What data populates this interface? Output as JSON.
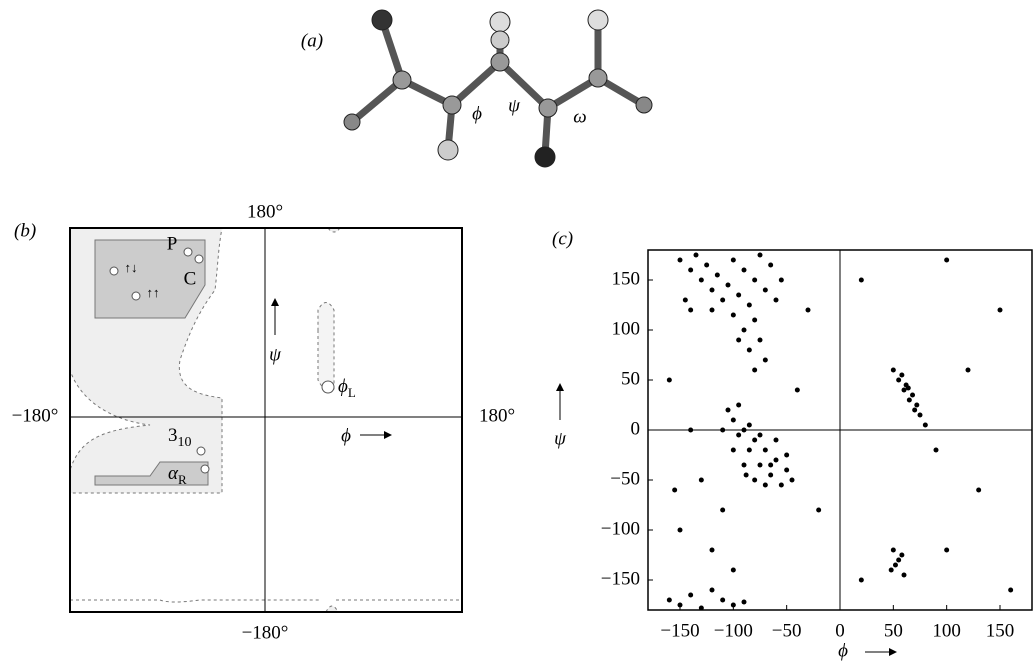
{
  "panel_a": {
    "label": "(a)",
    "angles": [
      "ϕ",
      "ψ",
      "ω"
    ]
  },
  "panel_b": {
    "label": "(b)",
    "edge_labels": {
      "top": "180°",
      "bottom": "−180°",
      "left": "−180°",
      "right": "180°"
    },
    "phi": "ϕ",
    "psi": "ψ",
    "regions": {
      "P": "P",
      "C": "C",
      "antiparallel": "↑↓",
      "parallel": "↑↑",
      "phi_L": {
        "base": "ϕ",
        "sub": "L"
      },
      "helix_310": {
        "base": "3",
        "sub": "10"
      },
      "alpha_R": {
        "base": "α",
        "sub": "R"
      }
    }
  },
  "chart_data": {
    "type": "scatter",
    "label": "(c)",
    "xlabel": "ϕ",
    "ylabel": "ψ",
    "color": "#000000",
    "crosshair": true,
    "xlim": [
      -180,
      180
    ],
    "ylim": [
      -180,
      180
    ],
    "xticks": [
      {
        "value": -150,
        "label": "−150"
      },
      {
        "value": -100,
        "label": "−100"
      },
      {
        "value": -50,
        "label": "−50"
      },
      0,
      50,
      100,
      150
    ],
    "yticks": [
      150,
      100,
      50,
      0,
      {
        "value": -50,
        "label": "−50"
      },
      {
        "value": -100,
        "label": "−100"
      },
      {
        "value": -150,
        "label": "−150"
      }
    ],
    "x": [
      -150,
      -140,
      -130,
      -120,
      -110,
      -100,
      -90,
      -80,
      -70,
      -60,
      -145,
      -135,
      -125,
      -115,
      -105,
      -95,
      -85,
      -75,
      -65,
      -55,
      -140,
      -120,
      -100,
      -80,
      -90,
      -75,
      -85,
      -70,
      -80,
      -95,
      -100,
      -90,
      -80,
      -70,
      -60,
      -50,
      -95,
      -85,
      -75,
      -65,
      -55,
      -100,
      -90,
      -80,
      -70,
      -105,
      -95,
      -85,
      -60,
      -50,
      -110,
      -75,
      -65,
      -45,
      -88,
      55,
      60,
      65,
      70,
      58,
      62,
      68,
      75,
      50,
      72,
      80,
      64,
      -160,
      -150,
      -140,
      -130,
      -110,
      -100,
      -90,
      -120,
      50,
      55,
      48,
      58,
      52,
      60,
      -130,
      -150,
      -120,
      -110,
      -140,
      -160,
      -30,
      20,
      100,
      150,
      120,
      90,
      130,
      100,
      160,
      -20,
      20,
      -40,
      -100,
      -155
    ],
    "y": [
      170,
      160,
      150,
      140,
      130,
      170,
      160,
      150,
      140,
      130,
      130,
      175,
      165,
      155,
      145,
      135,
      125,
      175,
      165,
      150,
      120,
      120,
      115,
      110,
      100,
      90,
      80,
      70,
      60,
      90,
      10,
      0,
      -10,
      -20,
      -30,
      -40,
      -5,
      -20,
      -35,
      -45,
      -55,
      -20,
      -35,
      -50,
      -55,
      20,
      25,
      5,
      -10,
      -25,
      0,
      -5,
      -35,
      -50,
      -45,
      50,
      40,
      30,
      20,
      55,
      45,
      35,
      15,
      60,
      25,
      5,
      42,
      -170,
      -175,
      -165,
      -178,
      -170,
      -175,
      -172,
      -160,
      -120,
      -130,
      -140,
      -125,
      -135,
      -145,
      -50,
      -100,
      -120,
      -80,
      0,
      50,
      120,
      150,
      170,
      120,
      60,
      -20,
      -60,
      -120,
      -160,
      -80,
      -150,
      40,
      -140,
      -60
    ]
  }
}
